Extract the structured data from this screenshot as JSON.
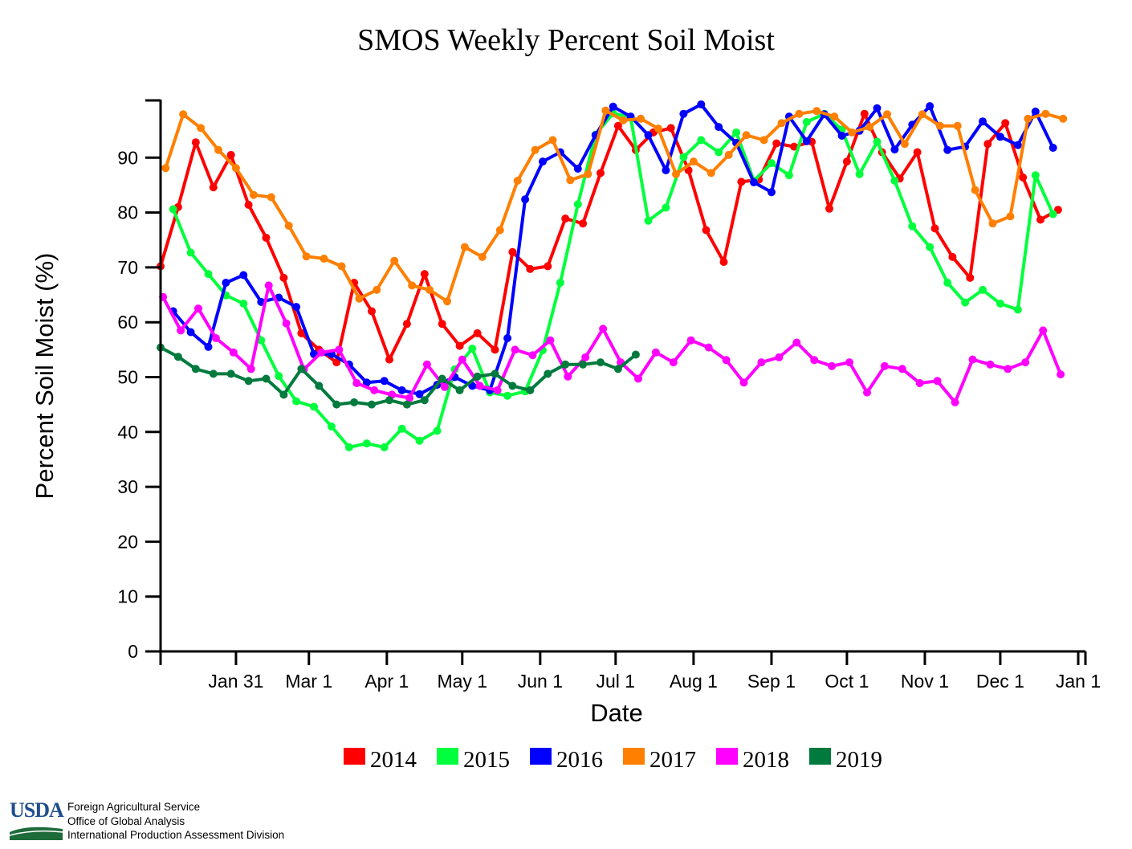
{
  "chart_data": {
    "type": "line",
    "title": "SMOS Weekly Percent Soil Moist",
    "xlabel": "Date",
    "ylabel": "Percent Soil Moist (%)",
    "ylim": [
      0,
      100
    ],
    "xlim_days": [
      1,
      366
    ],
    "y_ticks": [
      0,
      10,
      20,
      30,
      40,
      50,
      60,
      70,
      80,
      90
    ],
    "x_ticks": [
      {
        "label": "Jan 31",
        "day": 31
      },
      {
        "label": "Mar 1",
        "day": 60
      },
      {
        "label": "Apr 1",
        "day": 91
      },
      {
        "label": "May 1",
        "day": 121
      },
      {
        "label": "Jun 1",
        "day": 152
      },
      {
        "label": "Jul 1",
        "day": 182
      },
      {
        "label": "Aug 1",
        "day": 213
      },
      {
        "label": "Sep 1",
        "day": 244
      },
      {
        "label": "Oct 1",
        "day": 274
      },
      {
        "label": "Nov 1",
        "day": 305
      },
      {
        "label": "Dec 1",
        "day": 335
      },
      {
        "label": "Jan 1",
        "day": 366
      }
    ],
    "x_start_day": 1,
    "x_step_days": 7,
    "series": [
      {
        "name": "2014",
        "color": "#ff0000",
        "start_day": 1,
        "values": [
          70.2,
          81.0,
          92.8,
          84.6,
          90.5,
          81.4,
          75.4,
          68.1,
          58.0,
          55.0,
          52.7,
          67.2,
          62.0,
          53.2,
          59.7,
          68.8,
          59.7,
          55.7,
          58.0,
          55.0,
          72.8,
          69.7,
          70.2,
          78.9,
          78.0,
          87.2,
          95.8,
          91.4,
          94.6,
          95.4,
          87.7,
          76.8,
          71.0,
          85.6,
          86.0,
          92.6,
          92.0,
          92.9,
          80.7,
          89.3,
          98.0,
          91.0,
          86.2,
          91.0,
          77.1,
          71.9,
          68.1,
          92.5,
          96.3,
          86.4,
          78.7,
          80.5
        ]
      },
      {
        "name": "2015",
        "color": "#00ff3c",
        "start_day": 6,
        "values": [
          80.6,
          72.7,
          68.8,
          64.9,
          63.4,
          56.7,
          50.2,
          45.6,
          44.6,
          41.0,
          37.2,
          37.9,
          37.2,
          40.6,
          38.4,
          40.2,
          51.4,
          55.2,
          47.2,
          46.6,
          47.4,
          54.9,
          67.2,
          81.5,
          94.2,
          98.1,
          97.3,
          78.5,
          80.9,
          90.1,
          93.2,
          91.0,
          94.6,
          85.8,
          89.0,
          86.8,
          96.5,
          98.0,
          95.1,
          87.0,
          92.9,
          85.8,
          77.5,
          73.7,
          67.2,
          63.6,
          65.9,
          63.4,
          62.3,
          86.8,
          79.7
        ]
      },
      {
        "name": "2016",
        "color": "#0000ff",
        "start_day": 6,
        "values": [
          62.0,
          58.2,
          55.5,
          67.2,
          68.6,
          63.7,
          64.5,
          62.8,
          54.2,
          54.2,
          52.3,
          49.0,
          49.3,
          47.6,
          46.9,
          48.6,
          50.0,
          48.4,
          47.6,
          57.1,
          82.4,
          89.3,
          91.0,
          88.0,
          94.1,
          99.3,
          97.5,
          94.1,
          87.7,
          98.0,
          99.7,
          95.6,
          92.7,
          85.5,
          83.7,
          97.5,
          93.0,
          97.9,
          94.0,
          94.9,
          99.0,
          91.5,
          96.0,
          99.4,
          91.4,
          92.0,
          96.6,
          93.8,
          92.3,
          98.4,
          91.8
        ]
      },
      {
        "name": "2017",
        "color": "#ff7f00",
        "start_day": 3,
        "values": [
          88.1,
          97.9,
          95.4,
          91.4,
          88.1,
          83.2,
          82.8,
          77.6,
          72.0,
          71.6,
          70.2,
          64.3,
          65.9,
          71.2,
          66.7,
          65.9,
          63.8,
          73.7,
          71.9,
          76.8,
          85.8,
          91.4,
          93.2,
          85.9,
          87.0,
          98.6,
          96.8,
          97.1,
          95.3,
          87.0,
          89.3,
          87.2,
          90.5,
          94.1,
          93.2,
          96.3,
          98.0,
          98.5,
          97.5,
          94.6,
          95.6,
          97.9,
          92.5,
          97.9,
          95.8,
          95.8,
          84.1,
          78.0,
          79.3,
          97.1,
          98.0,
          97.1
        ]
      },
      {
        "name": "2018",
        "color": "#ff00ff",
        "start_day": 2,
        "values": [
          64.6,
          58.5,
          62.5,
          57.1,
          54.5,
          51.5,
          66.7,
          59.8,
          51.4,
          54.5,
          55.0,
          48.9,
          47.6,
          46.8,
          46.2,
          52.3,
          48.2,
          53.2,
          48.4,
          47.6,
          55.0,
          54.0,
          56.7,
          50.1,
          53.6,
          58.8,
          52.7,
          49.7,
          54.5,
          52.7,
          56.7,
          55.4,
          53.1,
          49.0,
          52.7,
          53.6,
          56.3,
          53.1,
          52.0,
          52.7,
          47.2,
          52.0,
          51.5,
          48.9,
          49.3,
          45.4,
          53.2,
          52.3,
          51.5,
          52.7,
          58.5,
          50.5
        ]
      },
      {
        "name": "2019",
        "color": "#007a3d",
        "start_day": 1,
        "values": [
          55.4,
          53.7,
          51.5,
          50.6,
          50.6,
          49.3,
          49.7,
          46.8,
          51.5,
          48.4,
          45.0,
          45.4,
          45.0,
          45.8,
          45.0,
          45.8,
          49.7,
          47.6,
          50.1,
          50.6,
          48.4,
          47.6,
          50.6,
          52.3,
          52.3,
          52.7,
          51.5,
          54.1
        ]
      }
    ],
    "legend_position": "bottom-center"
  },
  "footer": {
    "logo_text": "USDA",
    "agency_lines": [
      "Foreign Agricultural Service",
      "Office of Global Analysis",
      "International Production Assessment Division"
    ]
  }
}
